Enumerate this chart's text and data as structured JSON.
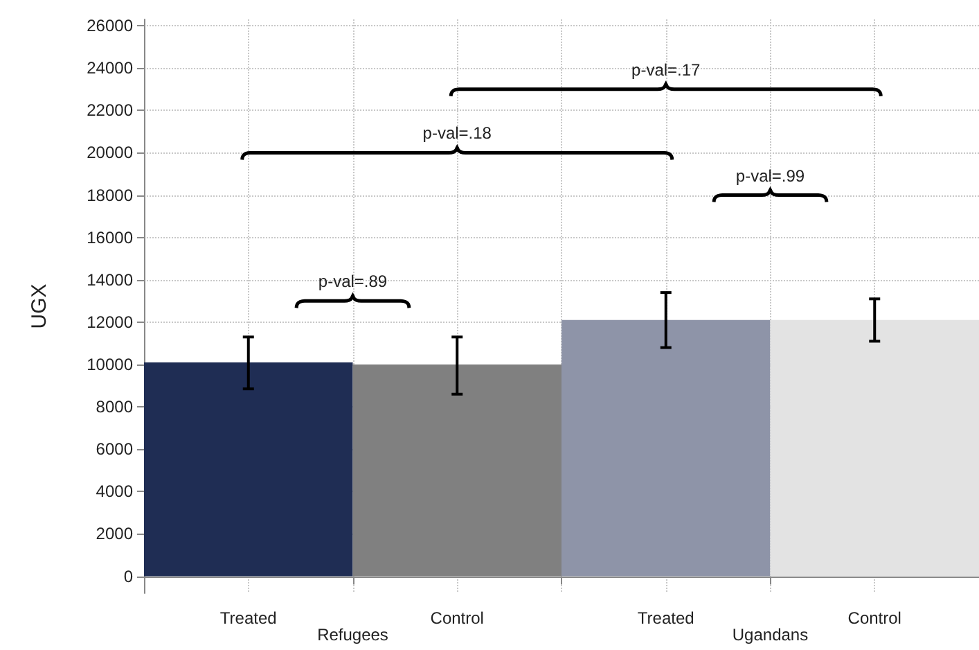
{
  "chart_data": {
    "type": "bar",
    "ylabel": "UGX",
    "categories": [
      "Treated",
      "Control",
      "Treated",
      "Control"
    ],
    "values": [
      10100,
      10000,
      12100,
      12100
    ],
    "colors": [
      "#1f2d54",
      "#808080",
      "#8e94a8",
      "#e3e3e3"
    ],
    "errors": [
      [
        8850,
        11300
      ],
      [
        8600,
        11300
      ],
      [
        10800,
        13400
      ],
      [
        11100,
        13100
      ]
    ],
    "ylim": [
      -800,
      26300
    ],
    "yticks": [
      0,
      2000,
      4000,
      6000,
      8000,
      10000,
      12000,
      14000,
      16000,
      18000,
      20000,
      22000,
      24000,
      26000
    ],
    "grid": true,
    "annotations": [
      "p-val=.89",
      "p-val=.18",
      "p-val=.17",
      "p-val=.99",
      "Refugees",
      "Ugandans"
    ]
  }
}
